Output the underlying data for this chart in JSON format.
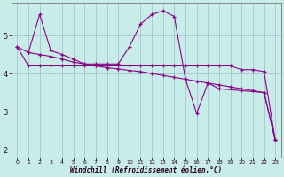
{
  "background_color": "#c8ece8",
  "grid_color": "#a0b8d0",
  "line_color": "#880088",
  "xlabel": "Windchill (Refroidissement éolien,°C)",
  "xlim": [
    -0.5,
    23.5
  ],
  "ylim": [
    1.8,
    5.85
  ],
  "yticks": [
    2,
    3,
    4,
    5
  ],
  "xticks": [
    0,
    1,
    2,
    3,
    4,
    5,
    6,
    7,
    8,
    9,
    10,
    11,
    12,
    13,
    14,
    15,
    16,
    17,
    18,
    19,
    20,
    21,
    22,
    23
  ],
  "series": [
    {
      "x": [
        0,
        1,
        2,
        3,
        4,
        5,
        6,
        7,
        8,
        9,
        10,
        11,
        12,
        13,
        14,
        15,
        16,
        17,
        18,
        19,
        20,
        21,
        22,
        23
      ],
      "y": [
        4.7,
        4.2,
        4.2,
        4.2,
        4.2,
        4.2,
        4.2,
        4.2,
        4.2,
        4.2,
        4.2,
        4.2,
        4.2,
        4.2,
        4.2,
        4.2,
        4.2,
        4.2,
        4.2,
        4.2,
        4.1,
        4.1,
        4.05,
        2.25
      ]
    },
    {
      "x": [
        1,
        2,
        3,
        4,
        5,
        6,
        7,
        8,
        9,
        10,
        11,
        12,
        13,
        14,
        15,
        16,
        17,
        18,
        20,
        22,
        23
      ],
      "y": [
        4.55,
        5.55,
        4.6,
        4.5,
        4.38,
        4.25,
        4.25,
        4.25,
        4.25,
        4.7,
        5.3,
        5.55,
        5.65,
        5.5,
        3.85,
        2.95,
        3.75,
        3.6,
        3.55,
        3.5,
        2.25
      ]
    },
    {
      "x": [
        0,
        1,
        2,
        3,
        4,
        5,
        6,
        7,
        8,
        9,
        10,
        11,
        12,
        13,
        14,
        15,
        16,
        17,
        18,
        19,
        20,
        21,
        22,
        23
      ],
      "y": [
        4.7,
        4.55,
        4.5,
        4.45,
        4.38,
        4.3,
        4.25,
        4.2,
        4.15,
        4.12,
        4.08,
        4.05,
        4.0,
        3.95,
        3.9,
        3.85,
        3.8,
        3.75,
        3.7,
        3.65,
        3.6,
        3.55,
        3.5,
        2.25
      ]
    }
  ]
}
